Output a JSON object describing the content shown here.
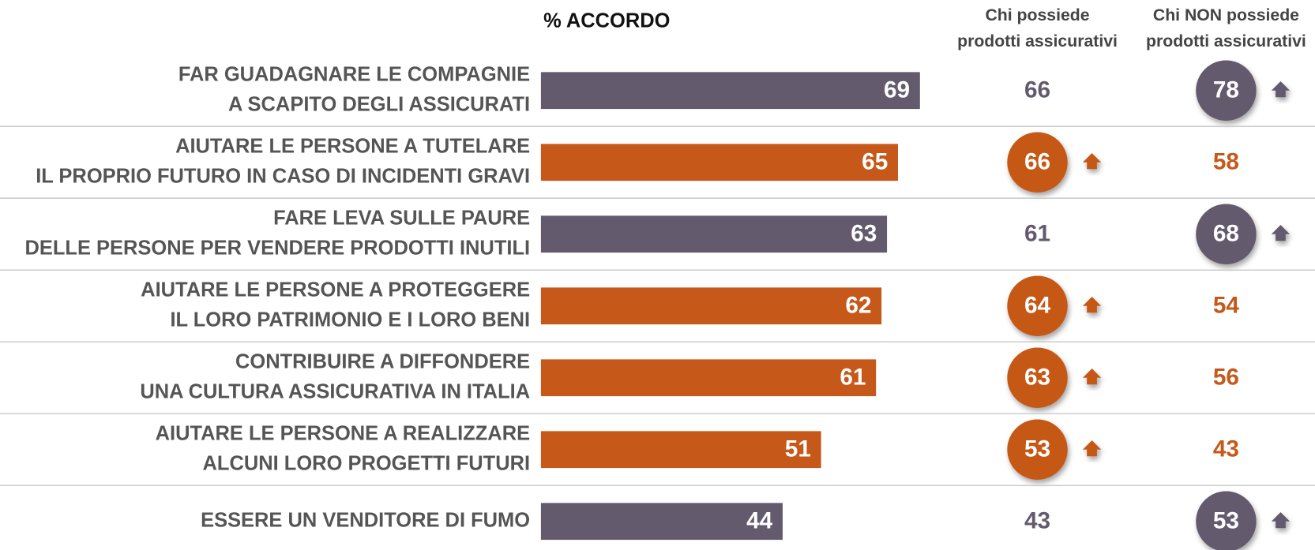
{
  "chart_data": {
    "type": "bar",
    "title": "% ACCORDO",
    "categories": [
      [
        "FAR GUADAGNARE LE COMPAGNIE",
        "A SCAPITO DEGLI ASSICURATI"
      ],
      [
        "AIUTARE LE PERSONE A TUTELARE",
        "IL PROPRIO FUTURO IN CASO DI INCIDENTI GRAVI"
      ],
      [
        "FARE LEVA SULLE PAURE",
        "DELLE PERSONE PER VENDERE PRODOTTI INUTILI"
      ],
      [
        "AIUTARE LE PERSONE A PROTEGGERE",
        "IL LORO PATRIMONIO E I LORO BENI"
      ],
      [
        "CONTRIBUIRE A DIFFONDERE",
        "UNA CULTURA ASSICURATIVA IN ITALIA"
      ],
      [
        "AIUTARE LE PERSONE A REALIZZARE",
        "ALCUNI LORO PROGETTI FUTURI"
      ],
      [
        "ESSERE UN VENDITORE DI FUMO"
      ]
    ],
    "values": [
      69,
      65,
      63,
      62,
      61,
      51,
      44
    ],
    "colors": [
      "#635a6e",
      "#c65819",
      "#635a6e",
      "#c65819",
      "#c65819",
      "#c65819",
      "#635a6e"
    ],
    "xlim": [
      0,
      100
    ],
    "columns": [
      {
        "name": [
          "Chi possiede",
          "prodotti assicurativi"
        ],
        "values": [
          66,
          66,
          61,
          64,
          63,
          53,
          43
        ],
        "highlight": [
          false,
          true,
          false,
          true,
          true,
          true,
          false
        ]
      },
      {
        "name": [
          "Chi NON possiede",
          "prodotti assicurativi"
        ],
        "values": [
          78,
          58,
          68,
          54,
          56,
          43,
          53
        ],
        "highlight": [
          true,
          false,
          true,
          false,
          false,
          false,
          true
        ]
      }
    ]
  }
}
